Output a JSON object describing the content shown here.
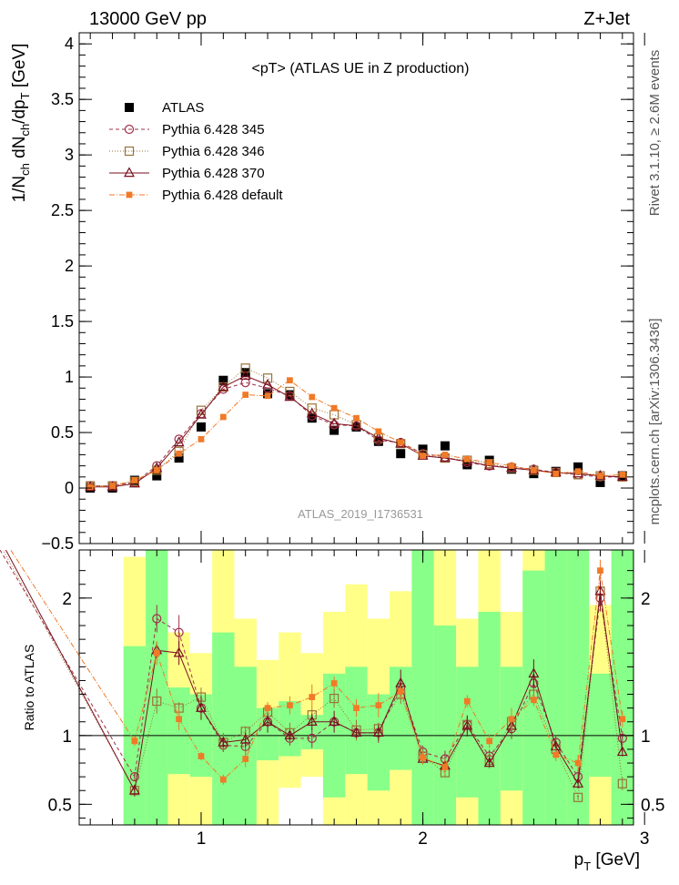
{
  "header": {
    "left": "13000 GeV pp",
    "right": "Z+Jet"
  },
  "side_labels": {
    "top": "Rivet 3.1.10, ≥ 2.6M events",
    "bottom": "mcplots.cern.ch [arXiv:1306.3436]"
  },
  "watermark": "ATLAS_2019_I1736531",
  "chart_data": [
    {
      "type": "scatter",
      "title": "<pT> (ATLAS UE in Z production)",
      "ylabel": "1/N_ch dN_ch/dp_T [GeV]",
      "xlabel": "",
      "xlim": [
        0.45,
        2.95
      ],
      "ylim": [
        -0.5,
        4.1
      ],
      "yticks": [
        -0.5,
        0,
        0.5,
        1,
        1.5,
        2,
        2.5,
        3,
        3.5,
        4
      ],
      "ytick_labels": [
        "−0.5",
        "0",
        "0.5",
        "1",
        "1.5",
        "2",
        "2.5",
        "3",
        "3.5",
        "4"
      ],
      "legend_position": "top-left",
      "x": [
        0.5,
        0.6,
        0.7,
        0.8,
        0.9,
        1.0,
        1.1,
        1.2,
        1.3,
        1.4,
        1.5,
        1.6,
        1.7,
        1.8,
        1.9,
        2.0,
        2.1,
        2.2,
        2.3,
        2.4,
        2.5,
        2.6,
        2.7,
        2.8,
        2.9
      ],
      "series": [
        {
          "name": "ATLAS",
          "color": "#000000",
          "marker": "filled-square",
          "values": [
            0.0,
            0.0,
            0.07,
            0.11,
            0.27,
            0.55,
            0.97,
            1.04,
            0.85,
            0.84,
            0.63,
            0.52,
            0.55,
            0.42,
            0.31,
            0.35,
            0.38,
            0.21,
            0.25,
            0.17,
            0.13,
            0.15,
            0.19,
            0.05,
            0.11
          ]
        },
        {
          "name": "Pythia 6.428 345",
          "color": "#a0304a",
          "marker": "open-circle",
          "dash": "4,3",
          "values": [
            0.02,
            0.02,
            0.05,
            0.2,
            0.44,
            0.67,
            0.89,
            0.95,
            0.9,
            0.83,
            0.65,
            0.57,
            0.56,
            0.43,
            0.41,
            0.31,
            0.28,
            0.23,
            0.2,
            0.19,
            0.17,
            0.14,
            0.12,
            0.1,
            0.1
          ]
        },
        {
          "name": "Pythia 6.428 346",
          "color": "#9a7238",
          "marker": "open-square",
          "dash": "1,2",
          "values": [
            0.02,
            0.02,
            0.06,
            0.16,
            0.33,
            0.7,
            0.91,
            1.08,
            0.99,
            0.87,
            0.72,
            0.66,
            0.57,
            0.45,
            0.4,
            0.3,
            0.27,
            0.25,
            0.22,
            0.18,
            0.16,
            0.14,
            0.12,
            0.11,
            0.1
          ]
        },
        {
          "name": "Pythia 6.428 370",
          "color": "#7a0f1e",
          "marker": "open-triangle",
          "dash": "",
          "values": [
            0.01,
            0.01,
            0.04,
            0.18,
            0.41,
            0.66,
            0.91,
            1.01,
            0.93,
            0.82,
            0.67,
            0.58,
            0.56,
            0.45,
            0.4,
            0.29,
            0.27,
            0.24,
            0.2,
            0.18,
            0.16,
            0.14,
            0.13,
            0.11,
            0.1
          ]
        },
        {
          "name": "Pythia 6.428 default",
          "color": "#f07a28",
          "marker": "filled-small-square",
          "dash": "6,2,1,2",
          "values": [
            0.01,
            0.02,
            0.07,
            0.16,
            0.31,
            0.44,
            0.64,
            0.84,
            0.83,
            0.97,
            0.82,
            0.72,
            0.63,
            0.51,
            0.41,
            0.29,
            0.3,
            0.26,
            0.23,
            0.2,
            0.16,
            0.13,
            0.15,
            0.11,
            0.12
          ]
        }
      ]
    },
    {
      "type": "line",
      "ylabel": "Ratio to ATLAS",
      "xlabel": "p_T [GeV]",
      "xlim": [
        0.45,
        2.95
      ],
      "ylim": [
        0.35,
        2.35
      ],
      "yticks": [
        0.5,
        1,
        2
      ],
      "ytick_labels": [
        "0.5",
        "1",
        "2"
      ],
      "xticks": [
        1,
        2,
        3
      ],
      "xtick_labels": [
        "1",
        "2",
        "3"
      ],
      "reference_line": 1,
      "bands": {
        "x_edges": [
          0.65,
          0.75,
          0.85,
          0.95,
          1.05,
          1.15,
          1.25,
          1.35,
          1.45,
          1.55,
          1.65,
          1.75,
          1.85,
          1.95,
          2.05,
          2.15,
          2.25,
          2.35,
          2.45,
          2.55,
          2.65,
          2.75,
          2.85,
          2.95
        ],
        "green_low": [
          0.35,
          0.35,
          0.72,
          0.7,
          0.35,
          0.35,
          0.82,
          0.85,
          0.9,
          0.55,
          0.72,
          0.6,
          0.75,
          0.35,
          0.35,
          0.55,
          0.35,
          0.6,
          0.35,
          0.35,
          0.35,
          0.7,
          0.35
        ],
        "green_high": [
          1.65,
          2.35,
          1.35,
          1.3,
          1.75,
          1.5,
          1.2,
          1.25,
          1.15,
          1.45,
          1.5,
          1.3,
          1.5,
          2.35,
          1.8,
          1.5,
          1.9,
          1.5,
          2.2,
          2.35,
          2.35,
          1.45,
          2.35
        ],
        "yellow_low": [
          0.35,
          0.35,
          0.35,
          0.35,
          0.35,
          0.35,
          0.35,
          0.62,
          0.7,
          0.35,
          0.35,
          0.35,
          0.35,
          0.35,
          0.35,
          0.35,
          0.35,
          0.35,
          0.35,
          0.35,
          0.35,
          0.35,
          0.35
        ],
        "yellow_high": [
          2.3,
          2.35,
          1.75,
          1.6,
          2.35,
          1.85,
          1.55,
          1.75,
          1.6,
          1.9,
          2.1,
          1.85,
          2.05,
          2.35,
          2.35,
          1.85,
          2.35,
          1.9,
          2.35,
          2.35,
          2.35,
          1.95,
          2.35
        ]
      },
      "series": [
        {
          "name": "Pythia 6.428 345",
          "color": "#a0304a",
          "marker": "open-circle",
          "dash": "4,3",
          "values": [
            0.7,
            1.85,
            1.75,
            1.2,
            0.93,
            0.92,
            1.1,
            0.98,
            0.98,
            1.1,
            1.02,
            1.02,
            1.35,
            0.88,
            0.83,
            1.08,
            0.85,
            1.05,
            1.38,
            0.95,
            0.7,
            2.0,
            0.98
          ]
        },
        {
          "name": "Pythia 6.428 346",
          "color": "#9a7238",
          "marker": "open-square",
          "dash": "1,2",
          "values": [
            0.6,
            1.25,
            1.2,
            1.28,
            0.95,
            1.03,
            1.17,
            1.02,
            1.15,
            1.27,
            1.04,
            1.05,
            1.3,
            0.85,
            0.73,
            1.08,
            0.82,
            1.1,
            1.3,
            0.9,
            0.55,
            2.05,
            0.65
          ]
        },
        {
          "name": "Pythia 6.428 370",
          "color": "#7a0f1e",
          "marker": "open-triangle",
          "dash": "",
          "values": [
            0.6,
            1.62,
            1.6,
            1.2,
            0.95,
            0.97,
            1.1,
            1.0,
            1.1,
            1.1,
            1.02,
            1.02,
            1.38,
            0.83,
            0.78,
            1.07,
            0.8,
            1.07,
            1.45,
            0.92,
            0.65,
            2.05,
            0.88
          ]
        },
        {
          "name": "Pythia 6.428 default",
          "color": "#f07a28",
          "marker": "filled-small-square",
          "dash": "6,2,1,2",
          "values": [
            0.96,
            1.6,
            1.12,
            0.85,
            0.68,
            0.83,
            1.2,
            1.22,
            1.28,
            1.38,
            1.2,
            1.22,
            1.32,
            0.84,
            0.77,
            1.25,
            0.96,
            1.12,
            1.26,
            0.86,
            0.8,
            2.2,
            1.12
          ]
        }
      ]
    }
  ]
}
